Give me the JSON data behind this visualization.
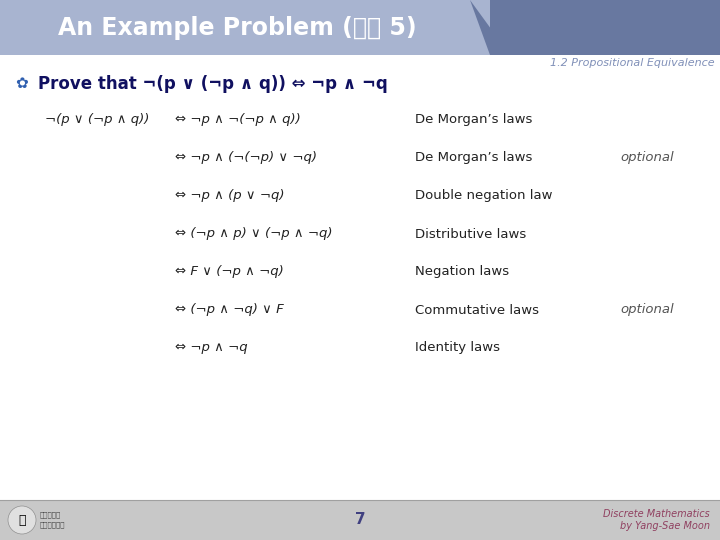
{
  "title": "An Example Problem (예제 5)",
  "subtitle": "1.2 Propositional Equivalence",
  "prove_text_normal": "Prove that ¬(",
  "prove_text": "Prove that ¬(p ∨ (¬p ∧ q)) ⇔ ¬p ∧ ¬q",
  "header_bg_left": "#aab4d4",
  "header_bg_right": "#7080a8",
  "slide_bg": "#ffffff",
  "footer_bg": "#c8c8c8",
  "rows": [
    {
      "left": "¬(p ∨ (¬p ∧ q))",
      "arrow": "⇔ ¬p ∧ ¬(¬p ∧ q))",
      "law": "De Morgan’s laws",
      "optional": ""
    },
    {
      "left": "",
      "arrow": "⇔ ¬p ∧ (¬(¬p) ∨ ¬q)",
      "law": "De Morgan’s laws",
      "optional": "optional"
    },
    {
      "left": "",
      "arrow": "⇔ ¬p ∧ (p ∨ ¬q)",
      "law": "Double negation law",
      "optional": ""
    },
    {
      "left": "",
      "arrow": "⇔ (¬p ∧ p) ∨ (¬p ∧ ¬q)",
      "law": "Distributive laws",
      "optional": ""
    },
    {
      "left": "",
      "arrow": "⇔ F ∨ (¬p ∧ ¬q)",
      "law": "Negation laws",
      "optional": ""
    },
    {
      "left": "",
      "arrow": "⇔ (¬p ∧ ¬q) ∨ F",
      "law": "Commutative laws",
      "optional": "optional"
    },
    {
      "left": "",
      "arrow": "⇔ ¬p ∧ ¬q",
      "law": "Identity laws",
      "optional": ""
    }
  ],
  "page_number": "7",
  "footer_right": "Discrete Mathematics\nby Yang-Sae Moon"
}
